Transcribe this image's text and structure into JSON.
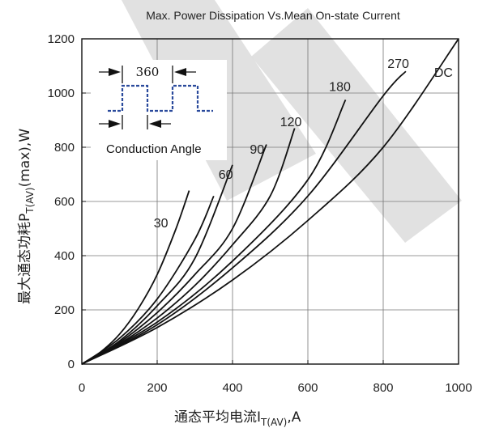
{
  "chart_data": {
    "type": "line",
    "title": "Max. Power Dissipation Vs.Mean On-state Current",
    "xlabel": {
      "main": "通态平均电流I",
      "sub": "T(AV)",
      "tail": ",A"
    },
    "ylabel": {
      "main": "最大通态功耗P",
      "sub": "T(AV)",
      "tail": "(max),W"
    },
    "xlim": [
      0,
      1000
    ],
    "ylim": [
      0,
      1200
    ],
    "xticks": [
      0,
      200,
      400,
      600,
      800,
      1000
    ],
    "yticks": [
      0,
      200,
      400,
      600,
      800,
      1000,
      1200
    ],
    "x_tick_labels": [
      "0",
      "200",
      "400",
      "600",
      "800",
      "1000"
    ],
    "y_tick_labels": [
      "0",
      "200",
      "400",
      "600",
      "800",
      "1000",
      "1200"
    ],
    "grid": true,
    "series": [
      {
        "name": "30",
        "x": [
          0,
          50,
          100,
          150,
          200,
          250,
          285
        ],
        "y": [
          0,
          45,
          110,
          205,
          330,
          500,
          640
        ]
      },
      {
        "name": "60",
        "x": [
          0,
          100,
          200,
          300,
          350
        ],
        "y": [
          0,
          95,
          240,
          460,
          620
        ]
      },
      {
        "name": "90",
        "x": [
          0,
          100,
          200,
          300,
          400
        ],
        "y": [
          0,
          85,
          215,
          390,
          735
        ]
      },
      {
        "name": "120",
        "x": [
          0,
          100,
          200,
          300,
          400,
          490
        ],
        "y": [
          0,
          80,
          190,
          330,
          500,
          810
        ]
      },
      {
        "name": "180",
        "x": [
          0,
          100,
          200,
          300,
          400,
          500,
          565
        ],
        "y": [
          0,
          75,
          170,
          290,
          440,
          620,
          870
        ]
      },
      {
        "name": "270",
        "x": [
          0,
          200,
          400,
          600,
          700
        ],
        "y": [
          0,
          155,
          380,
          680,
          975
        ]
      },
      {
        "name": "DC",
        "x": [
          0,
          200,
          400,
          600,
          800,
          860
        ],
        "y": [
          0,
          145,
          355,
          620,
          990,
          1080
        ]
      }
    ],
    "extra_curve": {
      "x": [
        0,
        200,
        400,
        600,
        800,
        1000
      ],
      "y": [
        0,
        135,
        310,
        530,
        800,
        1200
      ]
    },
    "label_positions": {
      "30": {
        "x": 210,
        "y": 505
      },
      "60": {
        "x": 382,
        "y": 683
      },
      "90": {
        "x": 465,
        "y": 776
      },
      "120": {
        "x": 555,
        "y": 877
      },
      "180": {
        "x": 685,
        "y": 1008
      },
      "270": {
        "x": 840,
        "y": 1092
      },
      "DC": {
        "x": 960,
        "y": 1060
      }
    },
    "inset": {
      "period_label": "360",
      "caption": "Conduction Angle"
    },
    "colors": {
      "curve": "#111111",
      "grid": "#777777",
      "pulse": "#2a4a9c",
      "watermark": "#d9d9d9"
    }
  }
}
